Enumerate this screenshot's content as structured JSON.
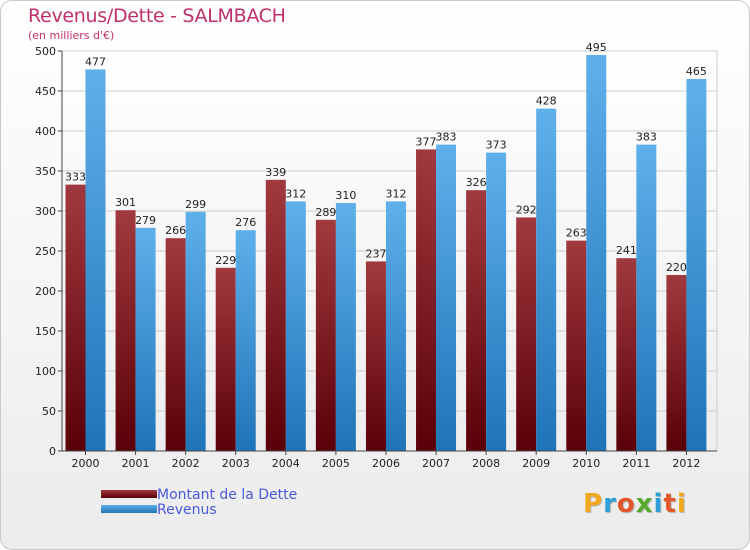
{
  "header": {
    "title": "Revenus/Dette - SALMBACH",
    "subtitle": "(en milliers d'€)"
  },
  "legend": {
    "dette_label": "Montant de la Dette",
    "revenus_label": "Revenus"
  },
  "logo": {
    "text": "Proxiti",
    "letter_colors": [
      "#f2a81d",
      "#2e9fd8",
      "#e2572a",
      "#56ab2f",
      "#2e9fd8",
      "#e2572a",
      "#f2a81d"
    ]
  },
  "colors": {
    "dette_top": "#a13a3f",
    "dette_bottom": "#5a0008",
    "revenus_top": "#5fb0ea",
    "revenus_bottom": "#1f74b8"
  },
  "chart_data": {
    "type": "bar",
    "title": "Revenus/Dette - SALMBACH",
    "subtitle": "(en milliers d'€)",
    "categories": [
      "2000",
      "2001",
      "2002",
      "2003",
      "2004",
      "2005",
      "2006",
      "2007",
      "2008",
      "2009",
      "2010",
      "2011",
      "2012"
    ],
    "series": [
      {
        "name": "Montant de la Dette",
        "values": [
          333,
          301,
          266,
          229,
          339,
          289,
          237,
          377,
          326,
          292,
          263,
          241,
          220
        ]
      },
      {
        "name": "Revenus",
        "values": [
          477,
          279,
          299,
          276,
          312,
          310,
          312,
          383,
          373,
          428,
          495,
          383,
          465
        ]
      }
    ],
    "yticks": [
      0,
      50,
      100,
      150,
      200,
      250,
      300,
      350,
      400,
      450,
      500
    ],
    "ylim": [
      0,
      500
    ],
    "grid": true,
    "legend_position": "bottom-left"
  }
}
